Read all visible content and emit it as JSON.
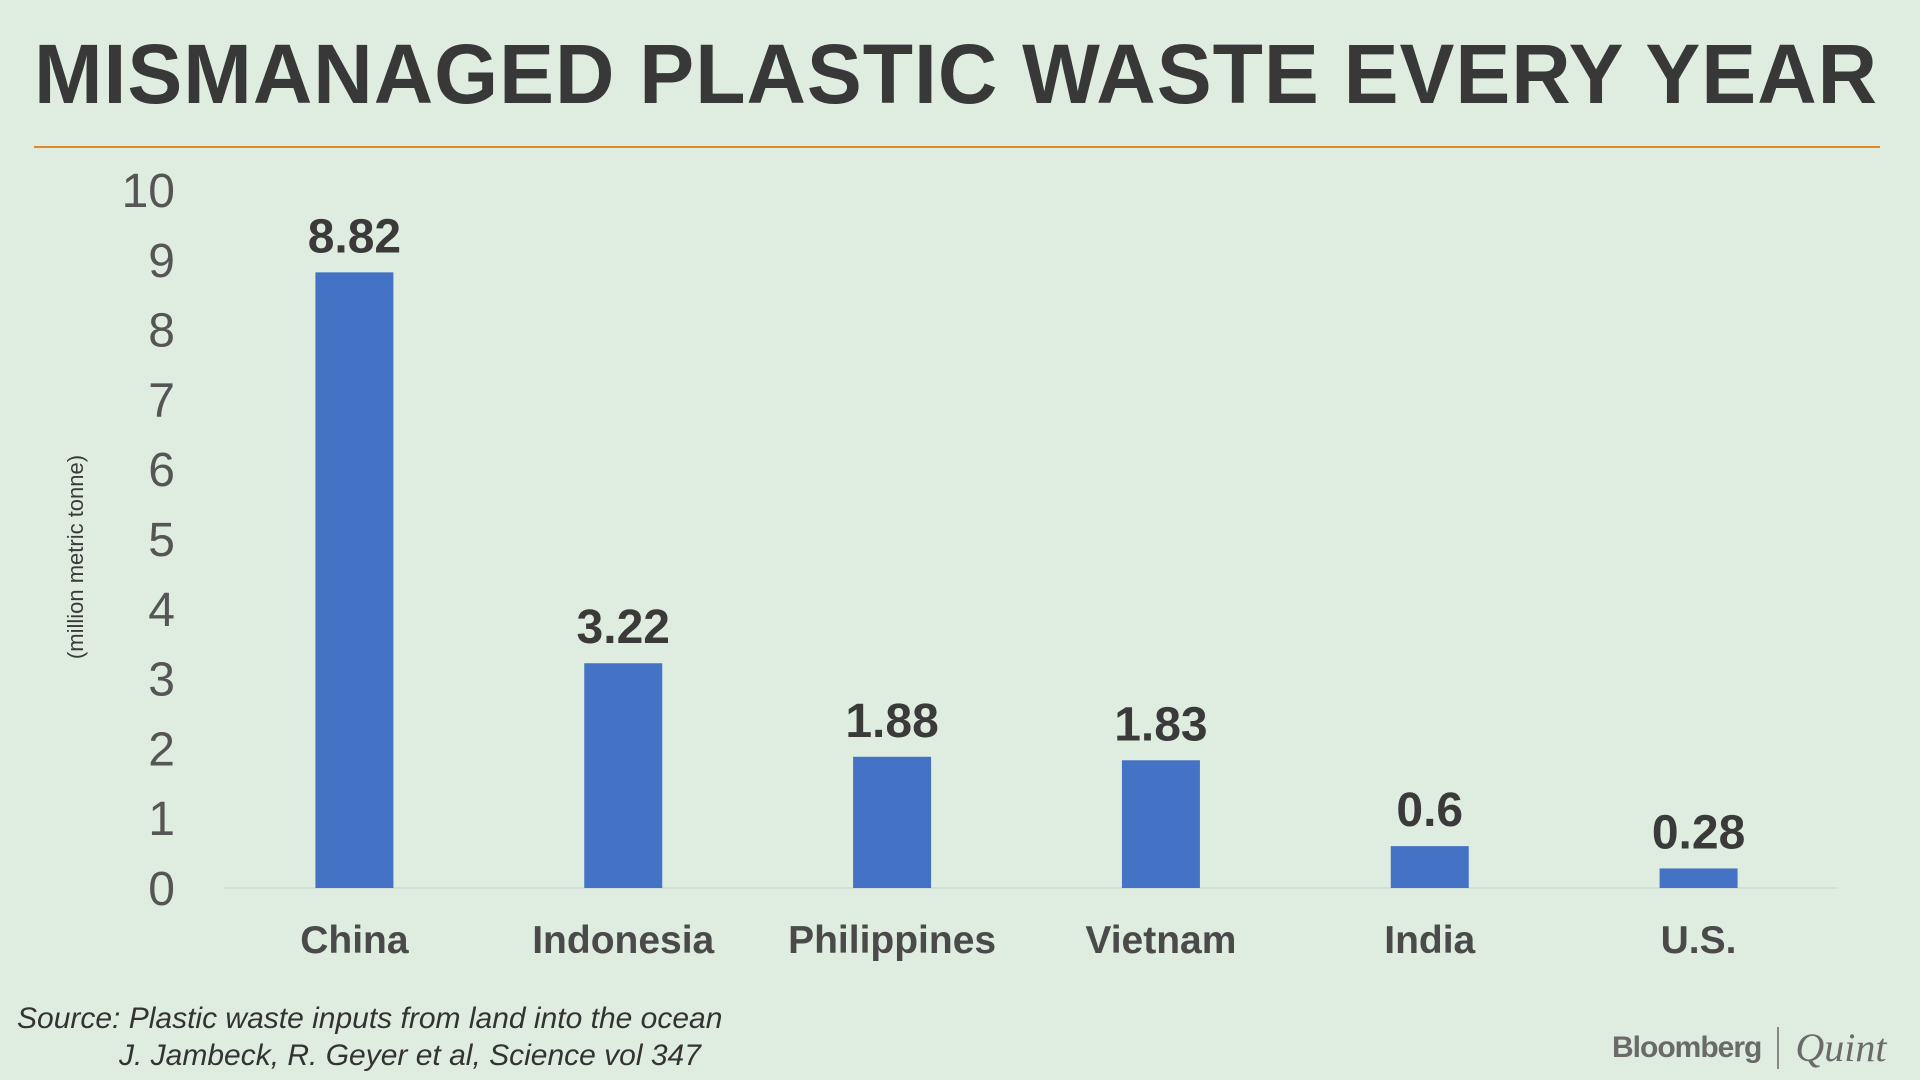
{
  "title": "MISMANAGED PLASTIC WASTE EVERY YEAR",
  "source": {
    "line1": "Source: Plastic waste inputs from land into the ocean",
    "line2": "J. Jambeck, R. Geyer et al, Science vol 347"
  },
  "logo": {
    "brand1": "Bloomberg",
    "brand2": "Quint"
  },
  "colors": {
    "background": "#dfede0",
    "bar": "#4472c4",
    "rule": "#e0892a",
    "text": "#3a3a3a"
  },
  "chart_data": {
    "type": "bar",
    "title": "MISMANAGED PLASTIC WASTE EVERY YEAR",
    "xlabel": "",
    "ylabel": "(million metric tonne)",
    "categories": [
      "China",
      "Indonesia",
      "Philippines",
      "Vietnam",
      "India",
      "U.S."
    ],
    "values": [
      8.82,
      3.22,
      1.88,
      1.83,
      0.6,
      0.28
    ],
    "value_labels": [
      "8.82",
      "3.22",
      "1.88",
      "1.83",
      "0.6",
      "0.28"
    ],
    "ylim": [
      0,
      10
    ],
    "yticks": [
      "0",
      "1",
      "2",
      "3",
      "4",
      "5",
      "6",
      "7",
      "8",
      "9",
      "10"
    ],
    "grid": false
  }
}
